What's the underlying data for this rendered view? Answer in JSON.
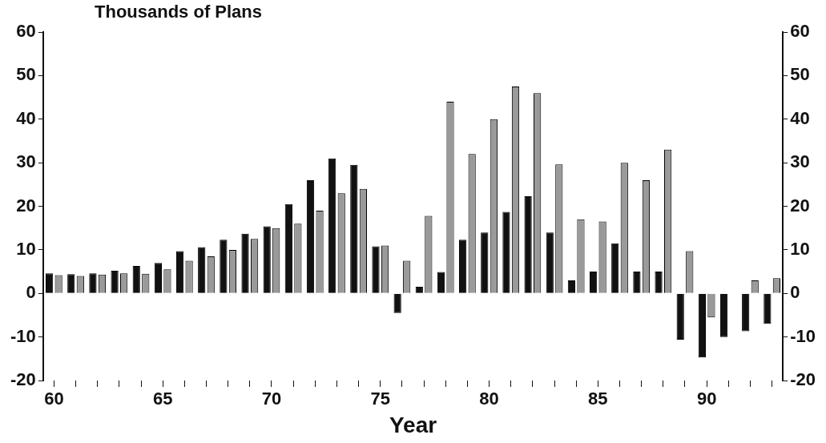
{
  "chart_data": {
    "type": "bar",
    "ylabel": "Thousands of Plans",
    "xlabel": "Year",
    "categories": [
      "60",
      null,
      null,
      null,
      null,
      "65",
      null,
      null,
      null,
      null,
      "70",
      null,
      null,
      null,
      null,
      "75",
      null,
      null,
      null,
      null,
      "80",
      null,
      null,
      null,
      null,
      "85",
      null,
      null,
      null,
      null,
      "90",
      null,
      null,
      null
    ],
    "series": [
      {
        "color": "#111111",
        "values": [
          4.6,
          4.4,
          4.6,
          5.2,
          6.3,
          7,
          9.7,
          10.6,
          12.3,
          13.7,
          15.4,
          20.5,
          26,
          31,
          29.5,
          10.8,
          -4.5,
          1.5,
          4.9,
          12.3,
          14,
          18.7,
          22.3,
          14,
          3,
          5,
          11.5,
          5,
          5,
          -10.6,
          -14.7,
          -10,
          -8.7,
          -7
        ]
      },
      {
        "color": "#9a9a9a",
        "values": [
          4.2,
          4,
          4.3,
          4.6,
          4.5,
          5.5,
          7.5,
          8.5,
          10,
          12.5,
          15,
          16,
          19,
          23,
          24,
          11,
          7.5,
          17.8,
          44,
          32,
          40,
          47.5,
          46,
          29.6,
          17,
          16.5,
          30,
          26,
          33,
          9.7,
          -5.5,
          0,
          3,
          3.5
        ]
      }
    ],
    "ylim": [
      -20,
      60
    ],
    "yticks": [
      -20,
      -10,
      0,
      10,
      20,
      30,
      40,
      50,
      60
    ],
    "y2lim": [
      -20,
      60
    ],
    "y2ticks": [
      -20,
      -10,
      0,
      10,
      20,
      30,
      40,
      50,
      60
    ],
    "grid": false,
    "legend": false
  }
}
